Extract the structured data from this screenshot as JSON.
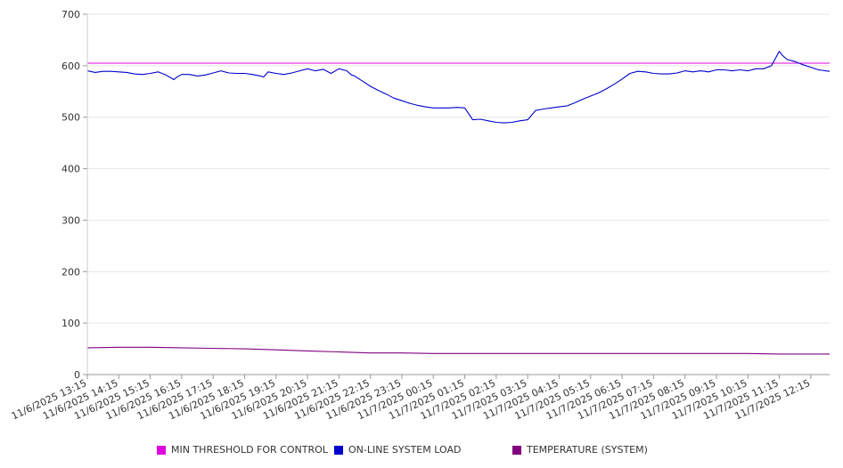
{
  "chart_data": {
    "type": "line",
    "title": "",
    "xlabel": "",
    "ylabel": "",
    "ylim": [
      0,
      700
    ],
    "yticks": [
      0,
      100,
      200,
      300,
      400,
      500,
      600,
      700
    ],
    "grid": true,
    "x_tick_labels": [
      "11/6/2025 13:15",
      "11/6/2025 14:15",
      "11/6/2025 15:15",
      "11/6/2025 16:15",
      "11/6/2025 17:15",
      "11/6/2025 18:15",
      "11/6/2025 19:15",
      "11/6/2025 20:15",
      "11/6/2025 21:15",
      "11/6/2025 22:15",
      "11/6/2025 23:15",
      "11/7/2025 00:15",
      "11/7/2025 01:15",
      "11/7/2025 02:15",
      "11/7/2025 03:15",
      "11/7/2025 04:15",
      "11/7/2025 05:15",
      "11/7/2025 06:15",
      "11/7/2025 07:15",
      "11/7/2025 08:15",
      "11/7/2025 09:15",
      "11/7/2025 10:15",
      "11/7/2025 11:15",
      "11/7/2025 12:15"
    ],
    "x_hours": [
      0,
      1,
      2,
      3,
      4,
      5,
      6,
      7,
      8,
      9,
      10,
      11,
      12,
      13,
      14,
      15,
      16,
      17,
      18,
      19,
      20,
      21,
      22,
      23
    ],
    "x_range_hours": [
      0,
      23.6
    ],
    "legend_position": "bottom",
    "series": [
      {
        "name": "MIN THRESHOLD FOR CONTROL",
        "color": "#e000e0",
        "x": [
          0,
          23.6
        ],
        "y": [
          605,
          605
        ]
      },
      {
        "name": "ON-LINE SYSTEM LOAD",
        "color": "#0000cc",
        "x": [
          0,
          0.25,
          0.5,
          0.75,
          1.0,
          1.25,
          1.5,
          1.75,
          2.0,
          2.25,
          2.5,
          2.75,
          2.85,
          3.0,
          3.25,
          3.5,
          3.75,
          4.0,
          4.25,
          4.5,
          4.75,
          5.0,
          5.25,
          5.5,
          5.6,
          5.75,
          6.0,
          6.25,
          6.5,
          6.75,
          7.0,
          7.25,
          7.5,
          7.75,
          8.0,
          8.25,
          8.4,
          8.5,
          8.75,
          9.0,
          9.25,
          9.5,
          9.75,
          10.0,
          10.25,
          10.5,
          10.75,
          11.0,
          11.25,
          11.5,
          11.75,
          12.0,
          12.25,
          12.5,
          12.75,
          13.0,
          13.25,
          13.5,
          13.75,
          14.0,
          14.25,
          14.5,
          14.75,
          15.0,
          15.25,
          15.5,
          15.75,
          16.0,
          16.25,
          16.5,
          16.75,
          17.0,
          17.25,
          17.5,
          17.75,
          18.0,
          18.25,
          18.5,
          18.75,
          19.0,
          19.25,
          19.5,
          19.75,
          20.0,
          20.25,
          20.5,
          20.75,
          21.0,
          21.25,
          21.5,
          21.75,
          22.0,
          22.1,
          22.25,
          22.5,
          22.75,
          23.0,
          23.25,
          23.6
        ],
        "y": [
          590,
          587,
          589,
          589,
          588,
          587,
          584,
          583,
          585,
          588,
          582,
          573,
          578,
          583,
          583,
          580,
          582,
          586,
          590,
          586,
          585,
          585,
          583,
          580,
          578,
          588,
          585,
          583,
          586,
          590,
          594,
          590,
          593,
          585,
          594,
          590,
          582,
          580,
          570,
          560,
          552,
          545,
          537,
          532,
          527,
          523,
          520,
          518,
          518,
          518,
          519,
          518,
          495,
          496,
          493,
          490,
          489,
          490,
          493,
          495,
          513,
          516,
          518,
          520,
          522,
          528,
          535,
          541,
          547,
          555,
          564,
          574,
          585,
          589,
          588,
          585,
          584,
          584,
          586,
          590,
          588,
          590,
          588,
          592,
          592,
          590,
          592,
          590,
          594,
          594,
          600,
          628,
          620,
          612,
          608,
          602,
          597,
          592,
          589
        ]
      },
      {
        "name": "TEMPERATURE (SYSTEM)",
        "color": "#800080",
        "x": [
          0,
          1,
          2,
          3,
          4,
          5,
          6,
          7,
          8,
          9,
          10,
          11,
          12,
          13,
          14,
          15,
          16,
          17,
          18,
          19,
          20,
          21,
          22,
          23,
          23.6
        ],
        "y": [
          52,
          53,
          53,
          52,
          51,
          50,
          48,
          46,
          44,
          42,
          42,
          41,
          41,
          41,
          41,
          41,
          41,
          41,
          41,
          41,
          41,
          41,
          40,
          40,
          40
        ]
      }
    ]
  }
}
